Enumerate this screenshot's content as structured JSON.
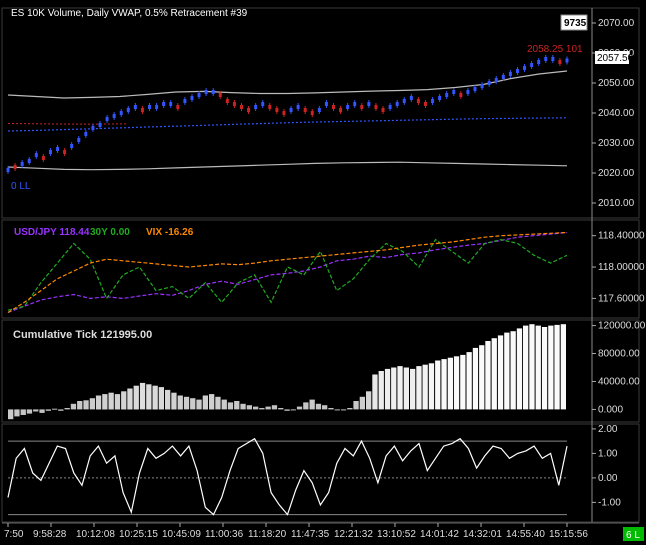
{
  "header": {
    "title": "ES 10K Volume, Daily VWAP, 0.5% Retracement #39"
  },
  "badges": {
    "volume": "9735",
    "last_price": "2057.50",
    "bar_label": "6 L"
  },
  "price_panel": {
    "high_label": "2058.25 101",
    "low_label": "0 LL",
    "y_ticks": [
      "2070.00",
      "2060.00",
      "2050.00",
      "2040.00",
      "2030.00",
      "2020.00",
      "2010.00"
    ]
  },
  "indicator_panel": {
    "legend": [
      {
        "text": "USD/JPY 118.44",
        "color": "#9933ff"
      },
      {
        "text": "30Y 0.00",
        "color": "#22aa22"
      },
      {
        "text": "VIX -16.26",
        "color": "#ff8800"
      }
    ],
    "y_ticks": [
      "118.40000",
      "118.00000",
      "117.60000"
    ]
  },
  "tick_panel": {
    "title": "Cumulative Tick 121995.00",
    "y_ticks": [
      "120000.00",
      "80000.00",
      "40000.00",
      "0.000"
    ]
  },
  "osc_panel": {
    "y_ticks": [
      "2.00",
      "1.00",
      "0.00",
      "-1.00"
    ]
  },
  "x_axis": {
    "ticks": [
      "7:50",
      "9:58:28",
      "10:12:08",
      "10:25:15",
      "10:45:09",
      "11:00:36",
      "11:18:20",
      "11:47:35",
      "12:21:32",
      "13:10:52",
      "14:01:42",
      "14:32:01",
      "14:55:40",
      "15:15:56"
    ]
  },
  "chart_data": [
    {
      "type": "candlestick",
      "title": "ES 10K Volume, Daily VWAP, 0.5% Retracement #39",
      "ylim": [
        2005,
        2075
      ],
      "closes": [
        2021,
        2022,
        2023,
        2024,
        2026,
        2025,
        2027,
        2028,
        2027,
        2029,
        2031,
        2033,
        2035,
        2036,
        2038,
        2039,
        2040,
        2041,
        2042,
        2041,
        2042,
        2042,
        2043,
        2043,
        2042,
        2044,
        2045,
        2046,
        2047,
        2047,
        2046,
        2044,
        2043,
        2042,
        2041,
        2042,
        2043,
        2042,
        2041,
        2040,
        2041,
        2042,
        2041,
        2040,
        2041,
        2043,
        2042,
        2041,
        2042,
        2043,
        2042,
        2043,
        2042,
        2041,
        2042,
        2043,
        2044,
        2045,
        2044,
        2043,
        2044,
        2045,
        2046,
        2047,
        2046,
        2047,
        2048,
        2049,
        2050,
        2051,
        2052,
        2053,
        2054,
        2055,
        2056,
        2057,
        2058,
        2058,
        2057,
        2057.5
      ],
      "up": [
        1,
        0,
        1,
        1,
        1,
        0,
        1,
        1,
        0,
        1,
        1,
        1,
        1,
        1,
        1,
        1,
        1,
        1,
        1,
        0,
        1,
        1,
        1,
        1,
        0,
        1,
        1,
        1,
        1,
        1,
        0,
        0,
        0,
        0,
        0,
        1,
        1,
        0,
        0,
        0,
        1,
        1,
        0,
        0,
        1,
        1,
        0,
        0,
        1,
        1,
        0,
        1,
        0,
        0,
        1,
        1,
        1,
        1,
        0,
        0,
        1,
        1,
        1,
        1,
        0,
        1,
        1,
        1,
        1,
        1,
        1,
        1,
        1,
        1,
        1,
        1,
        1,
        1,
        0,
        1
      ],
      "vwap": [
        2034,
        2034.2,
        2034.5,
        2034.8,
        2035.1,
        2035.4,
        2035.7,
        2036,
        2036.3,
        2036.6,
        2036.9,
        2037.1,
        2037.3,
        2037.5,
        2037.7,
        2037.9,
        2038.1,
        2038.2,
        2038.3,
        2038.4
      ],
      "band_upper": [
        2046,
        2045.5,
        2045,
        2045.2,
        2045.5,
        2046.2,
        2047,
        2047.2,
        2046.8,
        2046.5,
        2046.5,
        2046.7,
        2047,
        2047.3,
        2047.5,
        2047.8,
        2048.5,
        2049.5,
        2051.5,
        2053,
        2054
      ],
      "band_lower": [
        2022,
        2021.6,
        2021.2,
        2021.1,
        2021.2,
        2021.4,
        2021.7,
        2022,
        2022.3,
        2022.6,
        2022.9,
        2023.2,
        2023.4,
        2023.5,
        2023.6,
        2023.4,
        2023.2,
        2023,
        2022.8,
        2022.6,
        2022.4
      ],
      "prior_dotted": [
        2036.5,
        2036.4,
        2036.3,
        2036.3,
        2036.4
      ],
      "last_price": 2057.5,
      "high_marker": 2058.25
    },
    {
      "type": "line",
      "series": [
        {
          "name": "USD/JPY",
          "color": "#9933ff",
          "values": [
            117.42,
            117.5,
            117.58,
            117.62,
            117.65,
            117.6,
            117.62,
            117.6,
            117.63,
            117.66,
            117.64,
            117.7,
            117.78,
            117.82,
            117.78,
            117.84,
            117.9,
            117.92,
            117.95,
            118.0,
            118.08,
            118.1,
            118.14,
            118.12,
            118.16,
            118.18,
            118.22,
            118.25,
            118.28,
            118.3,
            118.34,
            118.38,
            118.4,
            118.42,
            118.44
          ]
        },
        {
          "name": "30Y",
          "color": "#22aa22",
          "values": [
            117.45,
            117.5,
            117.8,
            118.05,
            118.3,
            118.1,
            117.6,
            117.9,
            118.0,
            117.7,
            117.75,
            117.6,
            117.8,
            117.55,
            117.8,
            117.9,
            117.55,
            118.0,
            117.9,
            118.2,
            117.7,
            117.85,
            118.1,
            118.3,
            118.2,
            118.0,
            118.35,
            118.2,
            118.05,
            118.3,
            118.35,
            118.3,
            118.15,
            118.05,
            118.15
          ]
        },
        {
          "name": "VIX",
          "color": "#ff8800",
          "values": [
            117.42,
            117.55,
            117.7,
            117.85,
            117.95,
            118.05,
            118.1,
            118.08,
            118.06,
            118.04,
            118.02,
            118.0,
            118.02,
            118.04,
            118.03,
            118.05,
            118.08,
            118.1,
            118.12,
            118.14,
            118.16,
            118.18,
            118.2,
            118.22,
            118.25,
            118.28,
            118.3,
            118.32,
            118.35,
            118.38,
            118.4,
            118.41,
            118.42,
            118.43,
            118.44
          ]
        }
      ],
      "ylim": [
        117.35,
        118.6
      ]
    },
    {
      "type": "bar",
      "title": "Cumulative Tick 121995.00",
      "values": [
        -14000,
        -10000,
        -8000,
        -6000,
        -3000,
        -5000,
        -2000,
        1000,
        -2000,
        2000,
        8000,
        12000,
        13000,
        16000,
        20000,
        22000,
        24000,
        22000,
        26000,
        30000,
        34000,
        38000,
        36000,
        34000,
        32000,
        28000,
        24000,
        20000,
        18000,
        16000,
        14000,
        20000,
        22000,
        18000,
        14000,
        10000,
        12000,
        8000,
        6000,
        4000,
        2000,
        4000,
        6000,
        2000,
        -2000,
        0,
        4000,
        10000,
        14000,
        8000,
        6000,
        2000,
        -1000,
        0,
        2000,
        12000,
        18000,
        26000,
        50000,
        55000,
        58000,
        60000,
        62000,
        60000,
        58000,
        62000,
        64000,
        66000,
        70000,
        72000,
        74000,
        76000,
        78000,
        82000,
        88000,
        92000,
        98000,
        102000,
        106000,
        110000,
        112000,
        116000,
        120000,
        122000,
        120000,
        118000,
        120000,
        121000,
        121995
      ],
      "ylim": [
        -18000,
        128000
      ]
    },
    {
      "type": "line",
      "series": [
        {
          "name": "",
          "color": "#ffffff",
          "values": [
            -0.8,
            0.8,
            1.2,
            0.2,
            -0.1,
            0.6,
            1.3,
            1.2,
            0.2,
            -0.3,
            0.9,
            1.3,
            0.6,
            0.9,
            -0.6,
            -1.4,
            0.2,
            1.2,
            0.8,
            1.0,
            1.3,
            0.9,
            1.3,
            0.3,
            -1.2,
            -1.5,
            -0.8,
            0.3,
            1.2,
            1.4,
            1.6,
            1.0,
            -0.6,
            -1.1,
            -1.5,
            -0.5,
            0.3,
            -0.2,
            -1.1,
            -0.6,
            0.6,
            1.2,
            0.9,
            1.5,
            0.8,
            -0.2,
            0.9,
            1.3,
            0.7,
            1.1,
            1.4,
            0.3,
            0.8,
            1.3,
            1.4,
            1.6,
            1.2,
            0.4,
            0.9,
            1.3,
            1.2,
            0.8,
            1.0,
            1.1,
            1.3,
            0.8,
            1.0,
            -0.3,
            1.3
          ]
        }
      ],
      "ylim": [
        -1.8,
        2.2
      ],
      "reference_lines": [
        1.5,
        0.0,
        -1.5
      ]
    }
  ]
}
